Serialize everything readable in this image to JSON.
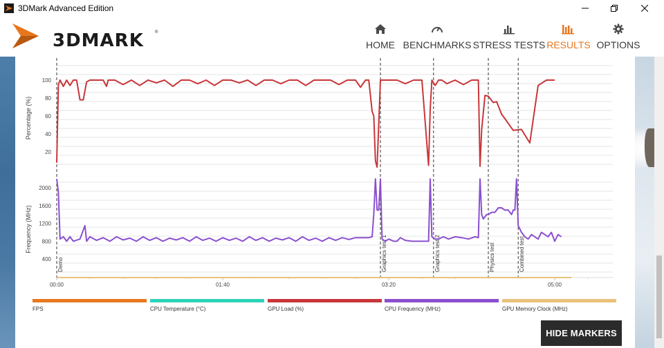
{
  "window": {
    "title": "3DMark Advanced Edition"
  },
  "header": {
    "logo_text": "3DMARK",
    "logo_tm": "®",
    "nav": [
      {
        "label": "HOME",
        "icon": "home-icon"
      },
      {
        "label": "BENCHMARKS",
        "icon": "speedometer-icon"
      },
      {
        "label": "STRESS TESTS",
        "icon": "bar-chart-icon"
      },
      {
        "label": "RESULTS",
        "icon": "results-bar-icon",
        "active": true
      },
      {
        "label": "OPTIONS",
        "icon": "gear-icon"
      }
    ]
  },
  "colors": {
    "accent": "#e8761d",
    "fps": "#e8791e",
    "cpu_temp": "#2ed3b7",
    "gpu_load": "#c8363a",
    "cpu_freq": "#8b4fcf",
    "gpu_mem_clock": "#e7c27a"
  },
  "chart_data": [
    {
      "type": "line",
      "ylabel": "Percentage (%)",
      "yticks": [
        20,
        40,
        60,
        80,
        100
      ],
      "ylim": [
        0,
        110
      ],
      "xlim": [
        0,
        310
      ],
      "series": [
        {
          "name": "GPU Load (%)",
          "color": "#c8363a",
          "x": [
            0,
            1,
            2,
            4,
            6,
            8,
            10,
            12,
            14,
            16,
            18,
            20,
            24,
            28,
            30,
            31,
            33,
            35,
            40,
            45,
            50,
            55,
            60,
            65,
            70,
            75,
            80,
            85,
            90,
            95,
            100,
            105,
            110,
            115,
            120,
            125,
            130,
            135,
            140,
            145,
            150,
            155,
            160,
            165,
            170,
            175,
            180,
            183,
            186,
            188,
            190,
            191,
            192,
            193,
            195,
            197,
            199,
            205,
            210,
            215,
            220,
            224,
            225,
            226,
            228,
            230,
            232,
            235,
            240,
            245,
            250,
            252,
            254,
            255,
            256,
            258,
            260,
            263,
            265,
            268,
            270,
            275,
            280,
            285,
            290,
            295,
            300
          ],
          "values": [
            8,
            95,
            100,
            93,
            100,
            94,
            100,
            100,
            78,
            78,
            98,
            100,
            100,
            100,
            93,
            100,
            100,
            100,
            95,
            100,
            94,
            100,
            97,
            100,
            93,
            100,
            100,
            96,
            100,
            94,
            100,
            100,
            97,
            100,
            94,
            100,
            100,
            96,
            100,
            100,
            94,
            100,
            100,
            100,
            95,
            100,
            100,
            92,
            100,
            100,
            65,
            60,
            10,
            3,
            100,
            100,
            100,
            100,
            96,
            100,
            100,
            5,
            68,
            100,
            94,
            100,
            100,
            96,
            100,
            95,
            100,
            100,
            100,
            4,
            45,
            83,
            82,
            75,
            76,
            62,
            57,
            44,
            45,
            30,
            94,
            100,
            100
          ]
        }
      ]
    },
    {
      "type": "line",
      "ylabel": "Frequency (MHz)",
      "yticks": [
        400,
        800,
        1200,
        1600,
        2000
      ],
      "ylim": [
        0,
        2300
      ],
      "xlim": [
        0,
        310
      ],
      "xticks": [
        "00:00",
        "01:40",
        "03:20",
        "05:00"
      ],
      "xtick_values": [
        0,
        100,
        200,
        300
      ],
      "markers": [
        {
          "label": "Demo",
          "x": 0
        },
        {
          "label": "Graphics test 1",
          "x": 195
        },
        {
          "label": "Graphics test 2",
          "x": 227
        },
        {
          "label": "Physics test",
          "x": 260
        },
        {
          "label": "Combined test",
          "x": 278
        }
      ],
      "series": [
        {
          "name": "CPU Frequency (MHz)",
          "color": "#8b4fcf",
          "x": [
            0,
            1,
            2,
            4,
            6,
            8,
            10,
            14,
            17,
            18,
            20,
            24,
            28,
            32,
            36,
            40,
            44,
            48,
            52,
            56,
            60,
            64,
            68,
            72,
            76,
            80,
            84,
            88,
            92,
            96,
            100,
            104,
            108,
            112,
            116,
            120,
            124,
            128,
            132,
            136,
            140,
            144,
            148,
            152,
            156,
            160,
            164,
            168,
            172,
            176,
            180,
            184,
            188,
            190,
            191,
            192,
            193,
            194,
            195,
            196,
            198,
            200,
            203,
            205,
            207,
            210,
            214,
            218,
            222,
            224,
            225,
            226,
            228,
            230,
            233,
            236,
            240,
            244,
            248,
            252,
            254,
            255,
            256,
            257,
            258,
            259,
            260,
            262,
            264,
            266,
            268,
            270,
            272,
            274,
            275,
            276,
            277,
            278,
            280,
            282,
            284,
            286,
            288,
            290,
            292,
            294,
            296,
            298,
            300,
            302,
            304
          ],
          "values": [
            2200,
            1900,
            850,
            900,
            800,
            900,
            800,
            850,
            1150,
            800,
            900,
            820,
            880,
            800,
            900,
            830,
            870,
            800,
            900,
            820,
            880,
            800,
            870,
            830,
            880,
            800,
            900,
            820,
            870,
            800,
            880,
            820,
            870,
            800,
            900,
            820,
            880,
            800,
            870,
            830,
            880,
            800,
            900,
            820,
            870,
            800,
            880,
            820,
            880,
            840,
            880,
            880,
            880,
            900,
            1400,
            2200,
            1500,
            1500,
            2200,
            850,
            800,
            850,
            800,
            800,
            880,
            820,
            800,
            800,
            800,
            800,
            2200,
            900,
            850,
            850,
            900,
            850,
            900,
            880,
            850,
            900,
            880,
            2200,
            1400,
            1300,
            1350,
            1400,
            1400,
            1450,
            1450,
            1550,
            1550,
            1500,
            1500,
            1400,
            1500,
            1500,
            2200,
            1150,
            1000,
            900,
            850,
            950,
            900,
            850,
            1000,
            950,
            900,
            1000,
            800,
            950,
            900
          ]
        },
        {
          "name": "GPU Memory Clock (MHz)",
          "color": "#e7c27a",
          "x": [
            0,
            310
          ],
          "values": [
            0,
            0
          ]
        }
      ]
    }
  ],
  "legend": [
    {
      "label": "FPS",
      "color": "#e8791e"
    },
    {
      "label": "CPU Temperature (°C)",
      "color": "#2ed3b7"
    },
    {
      "label": "GPU Load (%)",
      "color": "#c8363a"
    },
    {
      "label": "CPU Frequency (MHz)",
      "color": "#8b4fcf"
    },
    {
      "label": "GPU Memory Clock (MHz)",
      "color": "#e7c27a"
    }
  ],
  "buttons": {
    "hide_markers": "HIDE MARKERS"
  }
}
